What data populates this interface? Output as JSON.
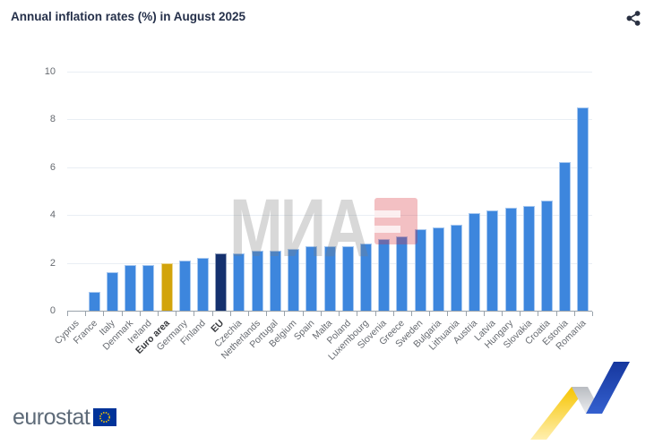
{
  "header": {
    "title": "Annual inflation rates (%) in August 2025",
    "share_icon": "share-icon"
  },
  "chart_data": {
    "type": "bar",
    "title": "Annual inflation rates (%) in August 2025",
    "xlabel": "",
    "ylabel": "",
    "ylim": [
      0,
      10
    ],
    "yticks": [
      0,
      2,
      4,
      6,
      8,
      10
    ],
    "grid": true,
    "legend": false,
    "categories": [
      "Cyprus",
      "France",
      "Italy",
      "Denmark",
      "Ireland",
      "Euro area",
      "Germany",
      "Finland",
      "EU",
      "Czechia",
      "Netherlands",
      "Portugal",
      "Belgium",
      "Spain",
      "Malta",
      "Poland",
      "Luxembourg",
      "Slovenia",
      "Greece",
      "Sweden",
      "Bulgaria",
      "Lithuania",
      "Austria",
      "Latvia",
      "Hungary",
      "Slovakia",
      "Croatia",
      "Estonia",
      "Romania"
    ],
    "values": [
      0.0,
      0.8,
      1.6,
      1.9,
      1.9,
      2.0,
      2.1,
      2.2,
      2.4,
      2.4,
      2.5,
      2.5,
      2.6,
      2.7,
      2.7,
      2.7,
      2.8,
      3.0,
      3.1,
      3.4,
      3.5,
      3.6,
      4.1,
      4.2,
      4.3,
      4.4,
      4.6,
      6.2,
      8.5
    ],
    "bold_categories": [
      "Euro area",
      "EU"
    ],
    "colors": {
      "default_bar": "#3d86dd",
      "euro_area_bar": "#d2a40b",
      "eu_bar": "#15316e"
    },
    "highlight_colors": {
      "Euro area": "#d2a40b",
      "EU": "#15316e"
    }
  },
  "watermark": {
    "text": "МИА",
    "logo": "mia-red-block"
  },
  "footer": {
    "brand": "eurostat",
    "flag_icon": "eu-flag",
    "ribbon_icon": "statistics-ribbon"
  }
}
